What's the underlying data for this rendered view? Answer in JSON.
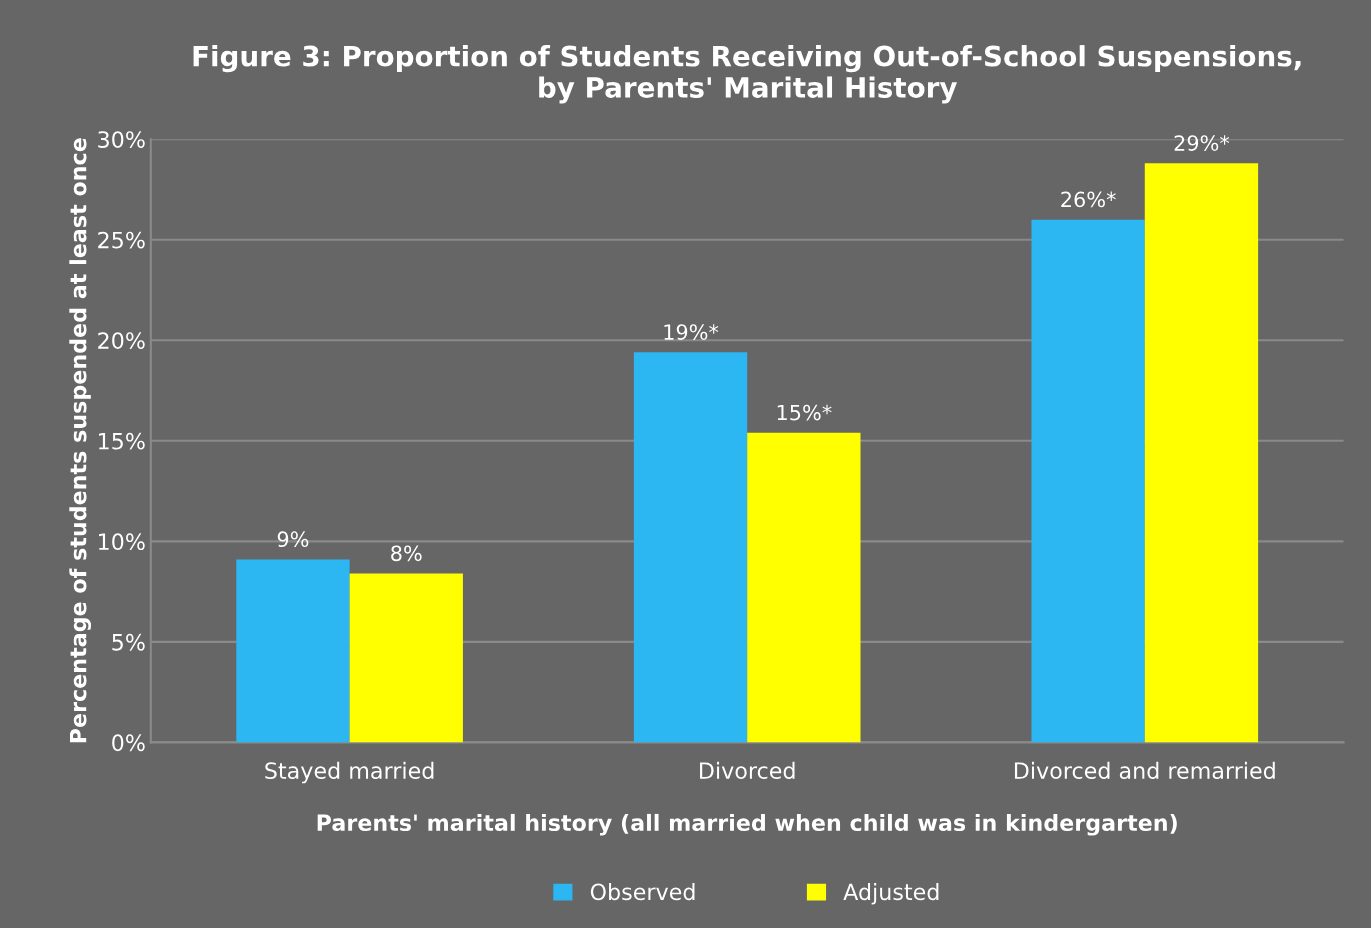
{
  "chart_data": {
    "type": "bar",
    "title": "Figure 3: Proportion of Students Receiving Out-of-School Suspensions,\nby Parents' Marital History",
    "xlabel": "Parents' marital history (all married when child was in kindergarten)",
    "ylabel": "Percentage of students suspended at least once",
    "categories": [
      "Stayed married",
      "Divorced",
      "Divorced and remarried"
    ],
    "series": [
      {
        "name": "Observed",
        "color": "#2cb6f2",
        "values": [
          9.1,
          19.4,
          26.0
        ],
        "value_labels": [
          "9%",
          "19%*",
          "26%*"
        ]
      },
      {
        "name": "Adjusted",
        "color": "#ffff00",
        "values": [
          8.4,
          15.4,
          28.8
        ],
        "value_labels": [
          "8%",
          "15%*",
          "29%*"
        ]
      }
    ],
    "ylim": [
      0,
      30
    ],
    "yticks": [
      {
        "value": 0,
        "label": "0%"
      },
      {
        "value": 5,
        "label": "5%"
      },
      {
        "value": 10,
        "label": "10%"
      },
      {
        "value": 15,
        "label": "15%"
      },
      {
        "value": 20,
        "label": "20%"
      },
      {
        "value": 25,
        "label": "25%"
      },
      {
        "value": 30,
        "label": "30%"
      }
    ],
    "grid": "y",
    "legend": "bottom"
  }
}
